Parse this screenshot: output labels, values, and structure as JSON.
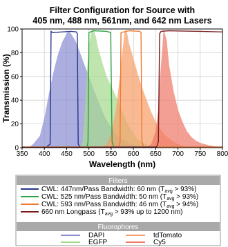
{
  "chart_data": {
    "type": "area",
    "title_line1": "Filter Configuration for Source with",
    "title_line2": "405 nm, 488 nm, 561nm, and 642 nm Lasers",
    "xlabel": "Wavelength (nm)",
    "ylabel": "Transmission (%)",
    "xlim": [
      350,
      800
    ],
    "ylim": [
      0,
      100
    ],
    "xticks": [
      350,
      400,
      450,
      500,
      550,
      600,
      650,
      700,
      750,
      800
    ],
    "yticks": [
      0,
      20,
      40,
      60,
      80,
      100
    ],
    "grid": true,
    "legend_placement": "below",
    "filters_heading": "Filters",
    "fluorophores_heading": "Fluorophores",
    "filters": [
      {
        "prefix": "CWL: 447nm/Pass Bandwidth: 60 nm (T",
        "sub": "avg",
        "suffix": " > 93%)",
        "color": "#27348b",
        "points": [
          [
            405,
            0.5
          ],
          [
            413,
            3
          ],
          [
            415,
            98
          ],
          [
            418,
            97
          ],
          [
            460,
            98
          ],
          [
            472,
            97.5
          ],
          [
            474,
            96
          ],
          [
            476,
            3
          ],
          [
            480,
            0.5
          ],
          [
            800,
            0.5
          ]
        ]
      },
      {
        "prefix": "CWL: 525 nm/Pass Bandwidth: 50 nm (T",
        "sub": "avg",
        "suffix": " > 93%)",
        "color": "#2ea043",
        "points": [
          [
            350,
            0.5
          ],
          [
            496,
            0.5
          ],
          [
            498,
            5
          ],
          [
            500,
            97
          ],
          [
            510,
            98.5
          ],
          [
            540,
            98
          ],
          [
            549,
            97
          ],
          [
            552,
            5
          ],
          [
            556,
            0.5
          ],
          [
            800,
            0.5
          ]
        ]
      },
      {
        "prefix": "CWL: 593 nm/Pass Bandwidth: 46 nm (T",
        "sub": "avg",
        "suffix": " > 94%)",
        "color": "#f07830",
        "points": [
          [
            350,
            0.5
          ],
          [
            568,
            0.5
          ],
          [
            570,
            5
          ],
          [
            572,
            97
          ],
          [
            590,
            98.5
          ],
          [
            614,
            98
          ],
          [
            617,
            97
          ],
          [
            619,
            5
          ],
          [
            623,
            0.5
          ],
          [
            800,
            0.5
          ]
        ]
      },
      {
        "prefix": "660 nm Longpass (T",
        "sub": "avg",
        "suffix": " > 93% up to 1200 nm)",
        "color": "#7a1b1b",
        "points": [
          [
            350,
            0.3
          ],
          [
            652,
            0.5
          ],
          [
            656,
            5
          ],
          [
            659,
            96
          ],
          [
            662,
            98
          ],
          [
            680,
            98.5
          ],
          [
            750,
            98
          ],
          [
            800,
            97.5
          ]
        ]
      }
    ],
    "fluorophores": [
      {
        "name": "DAPI",
        "color": "#8b8fd1",
        "points": [
          [
            365,
            0
          ],
          [
            375,
            3
          ],
          [
            390,
            10
          ],
          [
            400,
            25
          ],
          [
            410,
            45
          ],
          [
            420,
            63
          ],
          [
            430,
            78
          ],
          [
            440,
            89
          ],
          [
            450,
            96
          ],
          [
            455,
            98
          ],
          [
            460,
            96
          ],
          [
            470,
            90
          ],
          [
            480,
            80
          ],
          [
            490,
            70
          ],
          [
            500,
            60
          ],
          [
            510,
            50
          ],
          [
            520,
            40
          ],
          [
            530,
            31
          ],
          [
            540,
            23
          ],
          [
            550,
            17
          ],
          [
            560,
            12
          ],
          [
            570,
            8
          ],
          [
            580,
            6
          ],
          [
            590,
            4
          ],
          [
            600,
            2.5
          ],
          [
            615,
            1
          ],
          [
            630,
            0
          ]
        ]
      },
      {
        "name": "EGFP",
        "color": "#a7d98e",
        "points": [
          [
            480,
            0
          ],
          [
            486,
            5
          ],
          [
            490,
            25
          ],
          [
            495,
            60
          ],
          [
            500,
            85
          ],
          [
            505,
            98
          ],
          [
            510,
            100
          ],
          [
            516,
            93
          ],
          [
            520,
            85
          ],
          [
            530,
            72
          ],
          [
            540,
            60
          ],
          [
            550,
            52
          ],
          [
            560,
            44
          ],
          [
            570,
            35
          ],
          [
            580,
            26
          ],
          [
            590,
            18
          ],
          [
            600,
            12
          ],
          [
            610,
            7
          ],
          [
            620,
            4
          ],
          [
            640,
            1
          ],
          [
            660,
            0
          ]
        ]
      },
      {
        "name": "tdTomato",
        "color": "#f6a06a",
        "points": [
          [
            530,
            0
          ],
          [
            540,
            3
          ],
          [
            550,
            12
          ],
          [
            560,
            30
          ],
          [
            570,
            62
          ],
          [
            575,
            80
          ],
          [
            580,
            97
          ],
          [
            584,
            100
          ],
          [
            590,
            88
          ],
          [
            600,
            75
          ],
          [
            610,
            62
          ],
          [
            620,
            50
          ],
          [
            630,
            40
          ],
          [
            640,
            30
          ],
          [
            650,
            22
          ],
          [
            660,
            16
          ],
          [
            670,
            11
          ],
          [
            680,
            8
          ],
          [
            690,
            5
          ],
          [
            700,
            3
          ],
          [
            715,
            1
          ],
          [
            730,
            0
          ]
        ]
      },
      {
        "name": "Cy5",
        "color": "#f07a6a",
        "points": [
          [
            630,
            0
          ],
          [
            640,
            3
          ],
          [
            650,
            14
          ],
          [
            655,
            30
          ],
          [
            660,
            60
          ],
          [
            665,
            85
          ],
          [
            668,
            100
          ],
          [
            675,
            90
          ],
          [
            680,
            70
          ],
          [
            690,
            48
          ],
          [
            700,
            32
          ],
          [
            710,
            22
          ],
          [
            720,
            14
          ],
          [
            730,
            9
          ],
          [
            740,
            6
          ],
          [
            750,
            4
          ],
          [
            770,
            2
          ],
          [
            790,
            0.5
          ],
          [
            800,
            0
          ]
        ]
      }
    ]
  }
}
